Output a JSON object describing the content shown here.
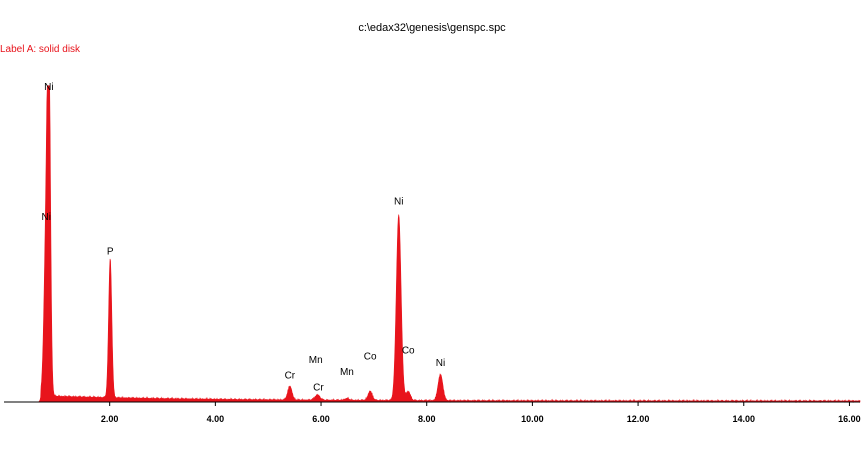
{
  "window_title": "c:\\edax32\\genesis\\genspc.spc",
  "spectrum_label": "Label A: solid disk",
  "colors": {
    "spectrum": "#e8141c",
    "axis": "#000000",
    "background": "#ffffff"
  },
  "chart_data": {
    "type": "area",
    "title": "c:\\edax32\\genesis\\genspc.spc",
    "subtitle": "Label A: solid disk",
    "xlabel": "",
    "ylabel": "",
    "xlim": [
      0.0,
      16.2
    ],
    "ylim": [
      0,
      1
    ],
    "grid": false,
    "legend": "none",
    "x_ticks": [
      "2.00",
      "4.00",
      "6.00",
      "8.00",
      "10.00",
      "12.00",
      "14.00",
      "16.00"
    ],
    "x_tick_values": [
      2,
      4,
      6,
      8,
      10,
      12,
      14,
      16
    ],
    "baseline": {
      "start": 0.7,
      "low_energy": 0.02,
      "decay_to": 0.003
    },
    "peaks": [
      {
        "element": "Ni",
        "energy": 0.85,
        "height": 1.0,
        "width": 0.03
      },
      {
        "element": "Ni",
        "energy": 0.8,
        "height": 0.55,
        "width": 0.04
      },
      {
        "element": "P",
        "energy": 2.01,
        "height": 0.45,
        "width": 0.03
      },
      {
        "element": "Cr",
        "energy": 5.41,
        "height": 0.045,
        "width": 0.04
      },
      {
        "element": "Cr",
        "energy": 5.95,
        "height": 0.012,
        "width": 0.04
      },
      {
        "element": "Mn",
        "energy": 5.9,
        "height": 0.008,
        "width": 0.04
      },
      {
        "element": "Mn",
        "energy": 6.49,
        "height": 0.006,
        "width": 0.04
      },
      {
        "element": "Co",
        "energy": 6.93,
        "height": 0.03,
        "width": 0.04
      },
      {
        "element": "Co",
        "energy": 7.65,
        "height": 0.03,
        "width": 0.04
      },
      {
        "element": "Ni",
        "energy": 7.47,
        "height": 0.6,
        "width": 0.045
      },
      {
        "element": "Ni",
        "energy": 8.26,
        "height": 0.085,
        "width": 0.045
      }
    ],
    "annotations": [
      {
        "text": "Ni",
        "x": 0.85,
        "y": 1.0
      },
      {
        "text": "Ni",
        "x": 0.8,
        "y": 0.58
      },
      {
        "text": "P",
        "x": 2.01,
        "y": 0.47
      },
      {
        "text": "Cr",
        "x": 5.41,
        "y": 0.07
      },
      {
        "text": "Cr",
        "x": 5.95,
        "y": 0.03
      },
      {
        "text": "Mn",
        "x": 5.9,
        "y": 0.12
      },
      {
        "text": "Mn",
        "x": 6.49,
        "y": 0.08
      },
      {
        "text": "Co",
        "x": 6.93,
        "y": 0.13
      },
      {
        "text": "Co",
        "x": 7.65,
        "y": 0.15
      },
      {
        "text": "Ni",
        "x": 7.47,
        "y": 0.63
      },
      {
        "text": "Ni",
        "x": 8.26,
        "y": 0.11
      }
    ]
  }
}
